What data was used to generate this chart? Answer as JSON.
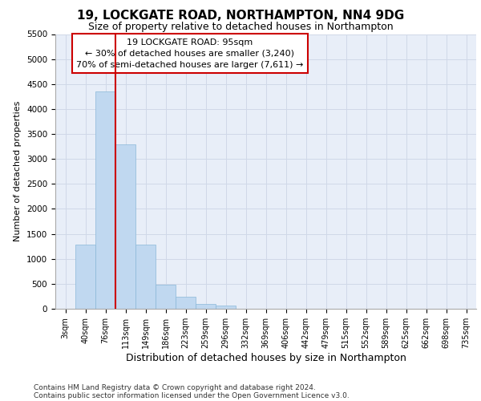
{
  "title_line1": "19, LOCKGATE ROAD, NORTHAMPTON, NN4 9DG",
  "title_line2": "Size of property relative to detached houses in Northampton",
  "xlabel": "Distribution of detached houses by size in Northampton",
  "ylabel": "Number of detached properties",
  "footnote_line1": "Contains HM Land Registry data © Crown copyright and database right 2024.",
  "footnote_line2": "Contains public sector information licensed under the Open Government Licence v3.0.",
  "bar_labels": [
    "3sqm",
    "40sqm",
    "76sqm",
    "113sqm",
    "149sqm",
    "186sqm",
    "223sqm",
    "259sqm",
    "296sqm",
    "332sqm",
    "369sqm",
    "406sqm",
    "442sqm",
    "479sqm",
    "515sqm",
    "552sqm",
    "589sqm",
    "625sqm",
    "662sqm",
    "698sqm",
    "735sqm"
  ],
  "bar_values": [
    0,
    1280,
    4350,
    3300,
    1290,
    480,
    240,
    100,
    60,
    0,
    0,
    0,
    0,
    0,
    0,
    0,
    0,
    0,
    0,
    0,
    0
  ],
  "bar_color": "#c0d8f0",
  "bar_edge_color": "#8ab8d8",
  "grid_color": "#d0d8e8",
  "bg_color": "#e8eef8",
  "vline_pos": 2.5,
  "vline_color": "#cc0000",
  "annotation_text": "19 LOCKGATE ROAD: 95sqm\n← 30% of detached houses are smaller (3,240)\n70% of semi-detached houses are larger (7,611) →",
  "annotation_box_facecolor": "#ffffff",
  "annotation_box_edgecolor": "#cc0000",
  "ylim_max": 5500,
  "ytick_step": 500,
  "title1_fontsize": 11,
  "title2_fontsize": 9,
  "ylabel_fontsize": 8,
  "xlabel_fontsize": 9,
  "tick_fontsize": 7.5,
  "xtick_fontsize": 7,
  "annot_fontsize": 8,
  "footnote_fontsize": 6.5
}
